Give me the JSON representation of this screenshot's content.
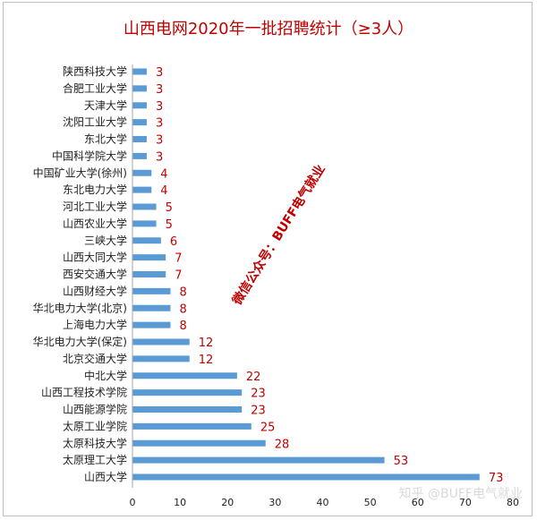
{
  "chart_data": {
    "type": "bar",
    "orientation": "horizontal",
    "title": "山西电网2020年一批招聘统计（≥3人）",
    "categories": [
      "陕西科技大学",
      "合肥工业大学",
      "天津大学",
      "沈阳工业大学",
      "东北大学",
      "中国科学院大学",
      "中国矿业大学(徐州)",
      "东北电力大学",
      "河北工业大学",
      "山西农业大学",
      "三峡大学",
      "山西大同大学",
      "西安交通大学",
      "山西财经大学",
      "华北电力大学(北京)",
      "上海电力大学",
      "华北电力大学(保定)",
      "北京交通大学",
      "中北大学",
      "山西工程技术学院",
      "山西能源学院",
      "太原工业学院",
      "太原科技大学",
      "太原理工大学",
      "山西大学"
    ],
    "values": [
      3,
      3,
      3,
      3,
      3,
      3,
      4,
      4,
      5,
      5,
      6,
      7,
      7,
      8,
      8,
      8,
      12,
      12,
      22,
      23,
      23,
      25,
      28,
      53,
      73
    ],
    "xlim": [
      0,
      80
    ],
    "xticks": [
      "0",
      "10",
      "20",
      "30",
      "40",
      "50",
      "60",
      "70",
      "80"
    ],
    "grid": false,
    "legend": false,
    "data_labels": true,
    "colors": {
      "bar": "#5b9bd5",
      "title": "#c00000",
      "value_label": "#c00000"
    }
  },
  "watermarks": {
    "diagonal": "微信公众号：BUFF电气就业",
    "corner": "知乎 @BUFF电气就业"
  }
}
